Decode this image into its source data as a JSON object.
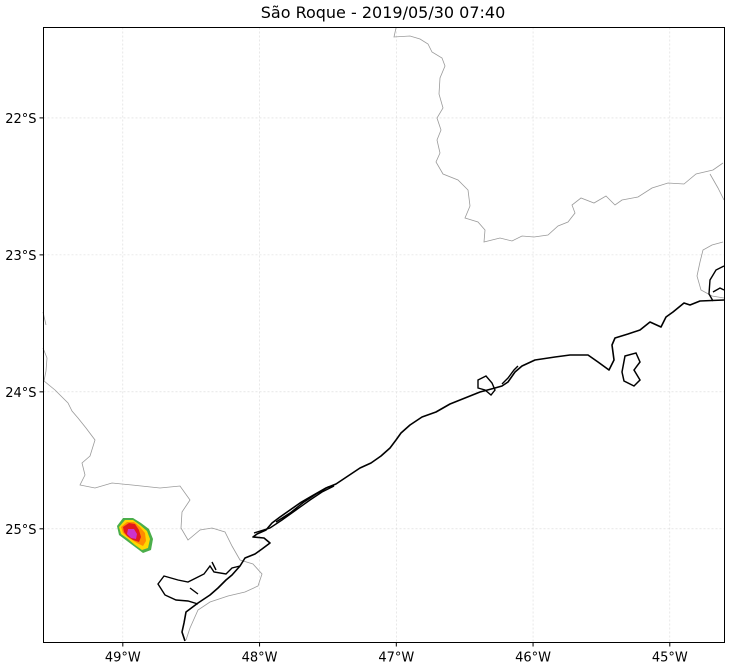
{
  "title": "São Roque - 2019/05/30 07:40",
  "x_ticks": [
    {
      "lon": -49,
      "label": "49°W"
    },
    {
      "lon": -48,
      "label": "48°W"
    },
    {
      "lon": -47,
      "label": "47°W"
    },
    {
      "lon": -46,
      "label": "46°W"
    },
    {
      "lon": -45,
      "label": "45°W"
    }
  ],
  "y_ticks": [
    {
      "lat": -22,
      "label": "22°S"
    },
    {
      "lat": -23,
      "label": "23°S"
    },
    {
      "lat": -24,
      "label": "24°S"
    },
    {
      "lat": -25,
      "label": "25°S"
    }
  ],
  "extent": {
    "lon_min": -49.58,
    "lon_max": -44.6,
    "lat_min": -25.83,
    "lat_max": -21.34
  },
  "colors": {
    "coastline": "#000000",
    "state_border": "#9a9a9a",
    "grid": "#d8d8d8",
    "radar_outer": "#2ca02c",
    "radar_mid1": "#ffd700",
    "radar_mid2": "#ff8c00",
    "radar_high": "#e31a1c",
    "radar_core": "#cc33cc"
  }
}
